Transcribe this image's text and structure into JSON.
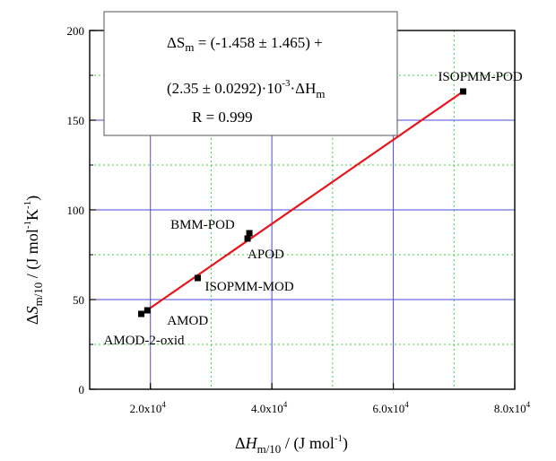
{
  "chart_data": {
    "type": "scatter",
    "x_ticks": [
      {
        "value": 20000,
        "label": "2.0x10",
        "exp": "4"
      },
      {
        "value": 40000,
        "label": "4.0x10",
        "exp": "4"
      },
      {
        "value": 60000,
        "label": "6.0x10",
        "exp": "4"
      },
      {
        "value": 80000,
        "label": "8.0x10",
        "exp": "4"
      }
    ],
    "y_ticks": [
      {
        "value": 0,
        "label": "0"
      },
      {
        "value": 50,
        "label": "50"
      },
      {
        "value": 100,
        "label": "100"
      },
      {
        "value": 150,
        "label": "150"
      },
      {
        "value": 200,
        "label": "200"
      }
    ],
    "xlim": [
      10000,
      80000
    ],
    "ylim": [
      0,
      200
    ],
    "grid": true,
    "points": [
      {
        "label": "AMOD-2-oxid",
        "x": 18500,
        "y": 42
      },
      {
        "label": "AMOD",
        "x": 19500,
        "y": 44
      },
      {
        "label": "ISOPMM-MOD",
        "x": 27800,
        "y": 62
      },
      {
        "label": "APOD",
        "x": 36000,
        "y": 84
      },
      {
        "label": "BMM-POD",
        "x": 36300,
        "y": 87
      },
      {
        "label": "ISOPMM-POD",
        "x": 71500,
        "y": 166
      }
    ],
    "fit_line": {
      "x": [
        19000,
        71500
      ],
      "y": [
        43,
        166
      ],
      "color": "#e8131b"
    },
    "equation_lines": [
      "ΔSm = (-1.458 ±  1.465) +",
      "(2.35 ± 0.0292)·10-3·ΔHm",
      "R = 0.999"
    ],
    "xlabel": "ΔHm/10 / (J mol-1)",
    "ylabel": "ΔSm/10 / (J mol-1K-1)"
  },
  "colors": {
    "grid_major": "#4b4bd8",
    "grid_minor": "#3fcf3f",
    "fit": "#e8131b",
    "marker": "#000000"
  }
}
